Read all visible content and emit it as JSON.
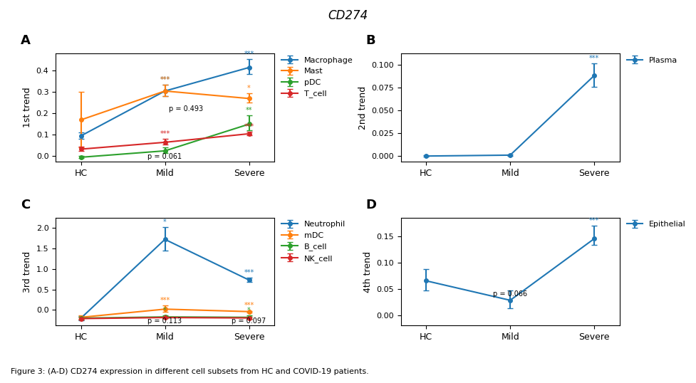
{
  "title": "CD274",
  "caption": "Figure 3: (A-D) CD274 expression in different cell subsets from HC and COVID-19 patients.",
  "chart_data": [
    {
      "type": "line",
      "title": "A",
      "y_label": "1st trend",
      "categories": [
        "HC",
        "Mild",
        "Severe"
      ],
      "ylim": [
        -0.025,
        0.48
      ],
      "yticks": [
        0.0,
        0.1,
        0.2,
        0.3,
        0.4
      ],
      "legend": "upper left",
      "marker": "o",
      "series": [
        {
          "name": "Macrophage",
          "values": [
            0.095,
            0.305,
            0.415
          ],
          "yerr_lo": [
            0.015,
            0.025,
            0.03
          ],
          "yerr_hi": [
            0.015,
            0.03,
            0.04
          ],
          "sig_labels": [
            null,
            "***",
            "***"
          ]
        },
        {
          "name": "Mast",
          "values": [
            0.17,
            0.305,
            0.27
          ],
          "yerr_lo": [
            0.13,
            0.025,
            0.02
          ],
          "yerr_hi": [
            0.13,
            0.03,
            0.025
          ],
          "sig_labels": [
            null,
            "***",
            "*"
          ]
        },
        {
          "name": "pDC",
          "values": [
            -0.005,
            0.025,
            0.15
          ],
          "yerr_lo": [
            0.005,
            0.012,
            0.03
          ],
          "yerr_hi": [
            0.005,
            0.015,
            0.04
          ],
          "sig_labels": [
            null,
            null,
            "**"
          ]
        },
        {
          "name": "T_cell",
          "values": [
            0.033,
            0.065,
            0.105
          ],
          "yerr_lo": [
            0.01,
            0.012,
            0.008
          ],
          "yerr_hi": [
            0.01,
            0.015,
            0.01
          ],
          "sig_labels": [
            null,
            "***",
            "***"
          ]
        }
      ],
      "annotations": [
        {
          "x": 1,
          "y": -0.018,
          "text": "p = 0.061"
        },
        {
          "x": 1.25,
          "y": 0.205,
          "text": "p = 0.493"
        }
      ]
    },
    {
      "type": "line",
      "title": "B",
      "y_label": "2nd trend",
      "categories": [
        "HC",
        "Mild",
        "Severe"
      ],
      "ylim": [
        -0.006,
        0.112
      ],
      "yticks": [
        {
          "value": 0.0,
          "label": "0.000"
        },
        {
          "value": 0.025,
          "label": "0.025"
        },
        {
          "value": 0.05,
          "label": "0.050"
        },
        {
          "value": 0.075,
          "label": "0.075"
        },
        {
          "value": 0.1,
          "label": "0.100"
        }
      ],
      "legend": "upper left",
      "marker": "o",
      "series": [
        {
          "name": "Plasma",
          "values": [
            0.0,
            0.001,
            0.088
          ],
          "yerr_lo": [
            0.001,
            0.001,
            0.012
          ],
          "yerr_hi": [
            0.001,
            0.001,
            0.013
          ],
          "sig_labels": [
            null,
            null,
            "***"
          ]
        }
      ],
      "annotations": []
    },
    {
      "type": "line",
      "title": "C",
      "y_label": "3rd trend",
      "categories": [
        "HC",
        "Mild",
        "Severe"
      ],
      "ylim": [
        -0.38,
        2.25
      ],
      "yticks": [
        0.0,
        0.5,
        1.0,
        1.5,
        2.0
      ],
      "legend": "upper left",
      "marker": "o",
      "series": [
        {
          "name": "Neutrophil",
          "values": [
            -0.2,
            1.72,
            0.73
          ],
          "yerr_lo": [
            0.05,
            0.27,
            0.045
          ],
          "yerr_hi": [
            0.05,
            0.3,
            0.05
          ],
          "sig_labels": [
            null,
            "*",
            "***"
          ]
        },
        {
          "name": "mDC",
          "values": [
            -0.18,
            0.02,
            -0.04
          ],
          "yerr_lo": [
            0.04,
            0.07,
            0.018
          ],
          "yerr_hi": [
            0.04,
            0.09,
            0.02
          ],
          "sig_labels": [
            null,
            "***",
            "***"
          ]
        },
        {
          "name": "B_cell",
          "values": [
            -0.2,
            -0.17,
            -0.18
          ],
          "yerr_lo": [
            0.04,
            0.035,
            0.035
          ],
          "yerr_hi": [
            0.04,
            0.04,
            0.04
          ],
          "sig_labels": [
            null,
            "*",
            "*"
          ]
        },
        {
          "name": "NK_cell",
          "values": [
            -0.21,
            -0.185,
            -0.195
          ],
          "yerr_lo": [
            0.03,
            0.02,
            0.018
          ],
          "yerr_hi": [
            0.03,
            0.02,
            0.02
          ],
          "sig_labels": [
            null,
            null,
            null
          ]
        }
      ],
      "annotations": [
        {
          "x": 1,
          "y": -0.355,
          "text": "p = 0.113"
        },
        {
          "x": 2,
          "y": -0.355,
          "text": "p = 0.097"
        }
      ]
    },
    {
      "type": "line",
      "title": "D",
      "y_label": "4th trend",
      "categories": [
        "HC",
        "Mild",
        "Severe"
      ],
      "ylim": [
        -0.02,
        0.185
      ],
      "yticks": [
        {
          "value": 0.0,
          "label": "0.00"
        },
        {
          "value": 0.05,
          "label": "0.05"
        },
        {
          "value": 0.1,
          "label": "0.10"
        },
        {
          "value": 0.15,
          "label": "0.15"
        }
      ],
      "legend": "upper left",
      "marker": "o",
      "series": [
        {
          "name": "Epithelial",
          "values": [
            0.065,
            0.028,
            0.145
          ],
          "yerr_lo": [
            0.018,
            0.015,
            0.012
          ],
          "yerr_hi": [
            0.022,
            0.018,
            0.025
          ],
          "sig_labels": [
            null,
            null,
            "***"
          ]
        }
      ],
      "annotations": [
        {
          "x": 1,
          "y": 0.033,
          "text": "p = 0.066"
        }
      ]
    }
  ]
}
